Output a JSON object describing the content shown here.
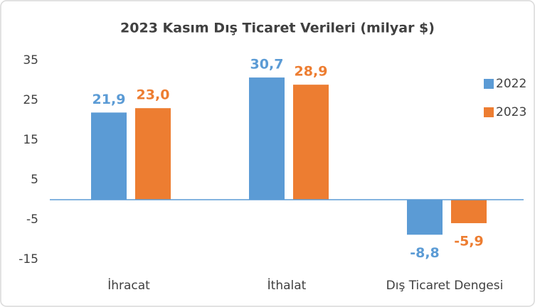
{
  "chart_data": {
    "type": "bar",
    "title": "2023 Kasım Dış Ticaret Verileri (milyar $)",
    "categories": [
      "İhracat",
      "İthalat",
      "Dış Ticaret Dengesi"
    ],
    "series": [
      {
        "name": "2022",
        "color": "#5b9bd5",
        "values": [
          21.9,
          30.7,
          -8.8
        ],
        "value_labels": [
          "21,9",
          "30,7",
          "-8,8"
        ]
      },
      {
        "name": "2023",
        "color": "#ed7d31",
        "values": [
          23.0,
          28.9,
          -5.9
        ],
        "value_labels": [
          "23,0",
          "28,9",
          "-5,9"
        ]
      }
    ],
    "ylim": [
      -15,
      35
    ],
    "yticks": [
      35,
      25,
      15,
      5,
      -5,
      -15
    ],
    "grid": false,
    "legend": "right"
  }
}
